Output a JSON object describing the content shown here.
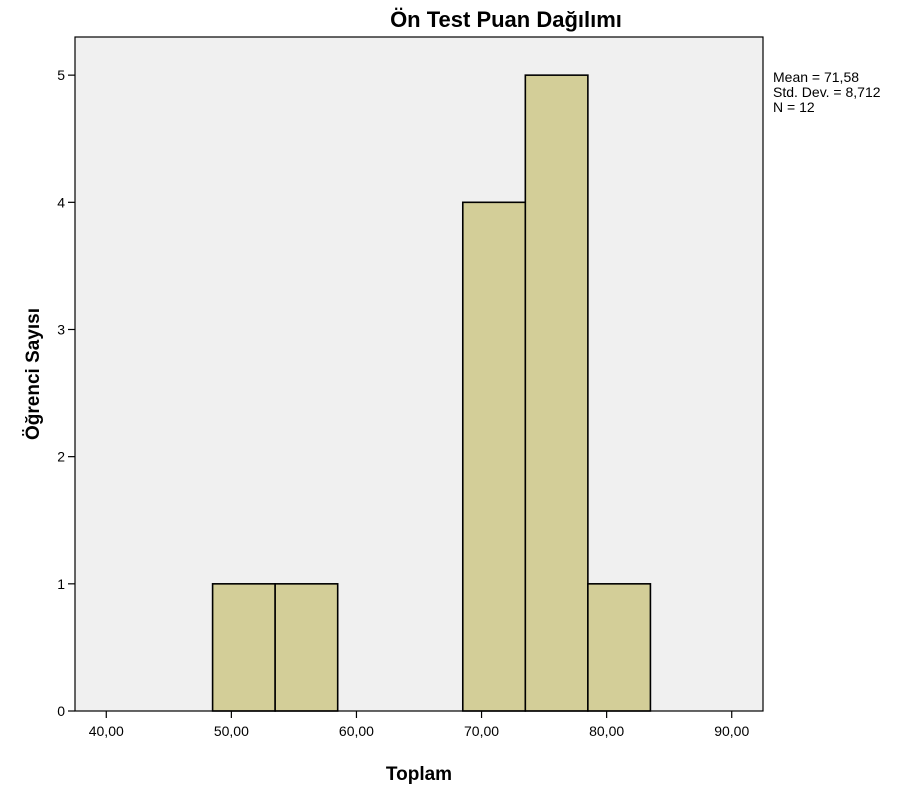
{
  "chart_data": {
    "type": "bar",
    "title": "Ön Test Puan Dağılımı",
    "xlabel": "Toplam",
    "ylabel": "Öğrenci Sayısı",
    "xlim": [
      37.5,
      92.5
    ],
    "ylim": [
      0,
      5.3
    ],
    "x_ticks": [
      {
        "value": 40,
        "label": "40,00"
      },
      {
        "value": 50,
        "label": "50,00"
      },
      {
        "value": 60,
        "label": "60,00"
      },
      {
        "value": 70,
        "label": "70,00"
      },
      {
        "value": 80,
        "label": "80,00"
      },
      {
        "value": 90,
        "label": "90,00"
      }
    ],
    "y_ticks": [
      {
        "value": 0,
        "label": "0"
      },
      {
        "value": 1,
        "label": "1"
      },
      {
        "value": 2,
        "label": "2"
      },
      {
        "value": 3,
        "label": "3"
      },
      {
        "value": 4,
        "label": "4"
      },
      {
        "value": 5,
        "label": "5"
      }
    ],
    "bins": [
      {
        "start": 48.5,
        "end": 53.5,
        "count": 1
      },
      {
        "start": 53.5,
        "end": 58.5,
        "count": 1
      },
      {
        "start": 68.5,
        "end": 73.5,
        "count": 4
      },
      {
        "start": 73.5,
        "end": 78.5,
        "count": 5
      },
      {
        "start": 78.5,
        "end": 83.5,
        "count": 1
      }
    ],
    "statistics": [
      "Mean = 71,58",
      "Std. Dev. = 8,712",
      "N = 12"
    ],
    "grid": false,
    "colors": {
      "bar_fill": "#d3ce98",
      "bar_stroke": "#000000",
      "plot_background": "#f0f0f0",
      "frame": "#000000"
    }
  }
}
